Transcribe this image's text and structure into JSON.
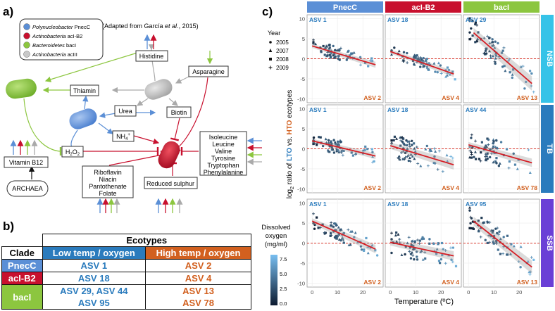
{
  "panel_a": {
    "letter": "a)",
    "legend": [
      {
        "label": "Polynucleobacter",
        "suffix": " PnecC",
        "color": "#5b8fd6"
      },
      {
        "label": "Actinobacteria",
        "suffix": " acI-B2",
        "color": "#c8102e"
      },
      {
        "label": "Bacteroidetes",
        "suffix": " bacI",
        "color": "#8cc63f"
      },
      {
        "label": "Actinobacteria",
        "suffix": " acIII",
        "color": "#c8c8c8"
      }
    ],
    "citation_prefix": "(Adapted from García ",
    "citation_italic": "et al.",
    "citation_suffix": ", 2015)",
    "nodes": {
      "histidine": "Histidine",
      "asparagine": "Asparagine",
      "thiamin": "Thiamin",
      "urea": "Urea",
      "biotin": "Biotin",
      "nh4": "NH",
      "nh4_sub": "4",
      "nh4_sup": "+",
      "h2o2_a": "H",
      "h2o2_2": "2",
      "h2o2_b": "O",
      "vitamin_b12": "Vitamin B12",
      "archaea": "ARCHAEA",
      "riboflavin": [
        "Riboflavin",
        "Niacin",
        "Pantothenate",
        "Folate"
      ],
      "amino": [
        "Isoleucine",
        "Leucine",
        "Valine",
        "Tyrosine",
        "Tryptophan",
        "Phenylalanine"
      ],
      "reduced_sulphur": "Reduced sulphur"
    },
    "colors": {
      "blue": "#5b8fd6",
      "red": "#c8102e",
      "green": "#8cc63f",
      "grey": "#aaaaaa"
    }
  },
  "panel_b": {
    "letter": "b)",
    "title": "Ecotypes",
    "col_clade": "Clade",
    "col_low": "Low temp / oxygen",
    "col_high": "High temp / oxygen",
    "rows": [
      {
        "clade": "PnecC",
        "low": [
          "ASV 1"
        ],
        "high": [
          "ASV 2"
        ],
        "color": "#5b8fd6"
      },
      {
        "clade": "acI-B2",
        "low": [
          "ASV 18"
        ],
        "high": [
          "ASV 4"
        ],
        "color": "#c8102e"
      },
      {
        "clade": "bacI",
        "low": [
          "ASV 29, ASV 44",
          "ASV 95"
        ],
        "high": [
          "ASV 13",
          "ASV 78"
        ],
        "color": "#8cc63f"
      }
    ]
  },
  "panel_c": {
    "letter": "c)",
    "columns": [
      {
        "label": "PnecC",
        "color": "#5b8fd6"
      },
      {
        "label": "acI-B2",
        "color": "#c8102e"
      },
      {
        "label": "bacI",
        "color": "#8cc63f"
      }
    ],
    "rows": [
      {
        "label": "NSB",
        "color": "#36c3e8"
      },
      {
        "label": "TB",
        "color": "#2a7bbd"
      },
      {
        "label": "SSB",
        "color": "#6a3fd6"
      }
    ],
    "year_legend": {
      "title": "Year",
      "items": [
        "2005",
        "2007",
        "2008",
        "2009"
      ]
    },
    "colorbar": {
      "title": [
        "Dissolved",
        "oxygen",
        "(mg/ml)"
      ],
      "ticks": [
        "7.5",
        "5.0",
        "2.5",
        "0.0"
      ]
    },
    "ylabel": {
      "a": "log",
      "sub": "2",
      "b": " ratio of ",
      "lto": "LTO",
      "c": " vs. ",
      "hto": "HTO",
      "d": " ecotypes"
    },
    "xlabel": "Temperature (ºC)",
    "x_ticks": [
      "0",
      "10",
      "20"
    ],
    "y_ticks": [
      "10",
      "5",
      "0",
      "-5",
      "-10"
    ]
  },
  "chart_data": {
    "type": "scatter",
    "title": "",
    "xlabel": "Temperature (ºC)",
    "ylabel": "log2 ratio of LTO vs. HTO ecotypes",
    "xlim": [
      -2,
      28
    ],
    "ylim": [
      -11,
      11
    ],
    "panels": [
      {
        "row": "NSB",
        "col": "PnecC",
        "lto": "ASV 1",
        "hto": "ASV 2",
        "fit": [
          [
            0,
            3.2
          ],
          [
            25,
            -1.5
          ]
        ],
        "band": 0.5,
        "seed": 1,
        "cx": 8,
        "spread": 1.6
      },
      {
        "row": "NSB",
        "col": "acI-B2",
        "lto": "ASV 18",
        "hto": "ASV 4",
        "fit": [
          [
            0,
            1.8
          ],
          [
            25,
            -3.8
          ]
        ],
        "band": 0.5,
        "seed": 2,
        "cx": 12,
        "spread": 1.4
      },
      {
        "row": "NSB",
        "col": "bacI",
        "lto": "ASV 29",
        "hto": "ASV 13",
        "fit": [
          [
            2,
            6.5
          ],
          [
            25,
            -6.2
          ]
        ],
        "band": 1.2,
        "seed": 3,
        "cx": 9,
        "spread": 3.0
      },
      {
        "row": "TB",
        "col": "PnecC",
        "lto": "ASV 1",
        "hto": "ASV 2",
        "fit": [
          [
            0,
            2.0
          ],
          [
            25,
            -1.8
          ]
        ],
        "band": 0.5,
        "seed": 4,
        "cx": 9,
        "spread": 1.8
      },
      {
        "row": "TB",
        "col": "acI-B2",
        "lto": "ASV 18",
        "hto": "ASV 4",
        "fit": [
          [
            0,
            0.8
          ],
          [
            25,
            -4.0
          ]
        ],
        "band": 0.8,
        "seed": 5,
        "cx": 7,
        "spread": 3.0
      },
      {
        "row": "TB",
        "col": "bacI",
        "lto": "ASV 44",
        "hto": "ASV 78",
        "fit": [
          [
            0,
            1.0
          ],
          [
            25,
            -3.5
          ]
        ],
        "band": 0.7,
        "seed": 6,
        "cx": 9,
        "spread": 3.2
      },
      {
        "row": "SSB",
        "col": "PnecC",
        "lto": "ASV 1",
        "hto": "ASV 2",
        "fit": [
          [
            0,
            5.5
          ],
          [
            25,
            -1.5
          ]
        ],
        "band": 0.7,
        "seed": 7,
        "cx": 10,
        "spread": 2.0
      },
      {
        "row": "SSB",
        "col": "acI-B2",
        "lto": "ASV 18",
        "hto": "ASV 4",
        "fit": [
          [
            0,
            0.2
          ],
          [
            25,
            -3.2
          ]
        ],
        "band": 0.8,
        "seed": 8,
        "cx": 10,
        "spread": 3.0
      },
      {
        "row": "SSB",
        "col": "bacI",
        "lto": "ASV 95",
        "hto": "ASV 13",
        "fit": [
          [
            2,
            5.5
          ],
          [
            25,
            -6.0
          ]
        ],
        "band": 1.1,
        "seed": 9,
        "cx": 11,
        "spread": 3.0
      }
    ]
  }
}
